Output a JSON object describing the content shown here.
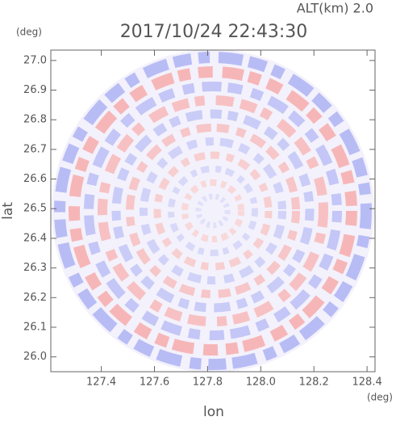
{
  "chart_data": {
    "type": "radar-ppi",
    "title": "2017/10/24 22:43:30",
    "subtitle": "ALT(km) 2.0",
    "x_label": "lon",
    "y_label": "lat",
    "x_unit": "(deg)",
    "y_unit": "(deg)",
    "xlim": [
      127.21,
      128.43
    ],
    "ylim": [
      25.95,
      27.035
    ],
    "xticks": [
      127.4,
      127.6,
      127.8,
      {
        "value": 128.0,
        "label": "128.0"
      },
      128.2,
      128.4
    ],
    "yticks": [
      {
        "value": 26.0,
        "label": "26.0"
      },
      26.1,
      26.2,
      26.3,
      26.4,
      26.5,
      26.6,
      26.7,
      26.8,
      26.9,
      {
        "value": 27.0,
        "label": "27.0"
      }
    ]
  }
}
